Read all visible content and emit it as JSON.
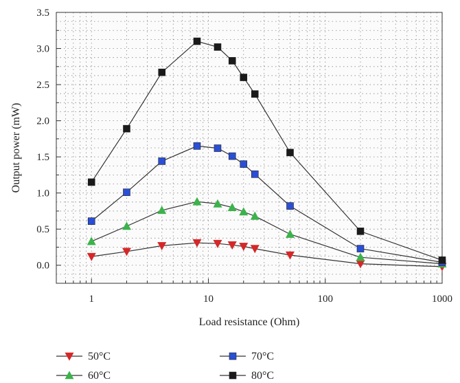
{
  "chart_data": {
    "type": "line",
    "xlabel": "Load resistance (Ohm)",
    "ylabel": "Output power (mW)",
    "x_scale": "log",
    "xlim": [
      0.5,
      1000
    ],
    "ylim": [
      -0.25,
      3.5
    ],
    "x_ticks": [
      1,
      10,
      100,
      1000
    ],
    "x_tick_labels": [
      "1",
      "10",
      "100",
      "1000"
    ],
    "y_ticks": [
      0.0,
      0.5,
      1.0,
      1.5,
      2.0,
      2.5,
      3.0,
      3.5
    ],
    "y_tick_labels": [
      "0.0",
      "0.5",
      "1.0",
      "1.5",
      "2.0",
      "2.5",
      "3.0",
      "3.5"
    ],
    "grid": true,
    "legend_position": "bottom",
    "series": [
      {
        "name": "50°C",
        "marker": "triangle-down",
        "color": "#d62728",
        "x": [
          1,
          2,
          4,
          8,
          12,
          16,
          20,
          25,
          50,
          200,
          1000
        ],
        "y": [
          0.12,
          0.19,
          0.27,
          0.31,
          0.3,
          0.28,
          0.26,
          0.23,
          0.14,
          0.02,
          -0.02
        ]
      },
      {
        "name": "60°C",
        "marker": "triangle-up",
        "color": "#3bb34a",
        "x": [
          1,
          2,
          4,
          8,
          12,
          16,
          20,
          25,
          50,
          200,
          1000
        ],
        "y": [
          0.33,
          0.54,
          0.76,
          0.88,
          0.85,
          0.8,
          0.74,
          0.68,
          0.43,
          0.11,
          0.02
        ]
      },
      {
        "name": "70°C",
        "marker": "square",
        "color": "#2a4fd6",
        "x": [
          1,
          2,
          4,
          8,
          12,
          16,
          20,
          25,
          50,
          200,
          1000
        ],
        "y": [
          0.61,
          1.01,
          1.44,
          1.65,
          1.62,
          1.51,
          1.4,
          1.26,
          0.82,
          0.23,
          0.04
        ]
      },
      {
        "name": "80°C",
        "marker": "square",
        "color": "#1a1a1a",
        "x": [
          1,
          2,
          4,
          8,
          12,
          16,
          20,
          25,
          50,
          200,
          1000
        ],
        "y": [
          1.15,
          1.89,
          2.67,
          3.1,
          3.02,
          2.83,
          2.6,
          2.37,
          1.56,
          0.47,
          0.07
        ]
      }
    ]
  }
}
